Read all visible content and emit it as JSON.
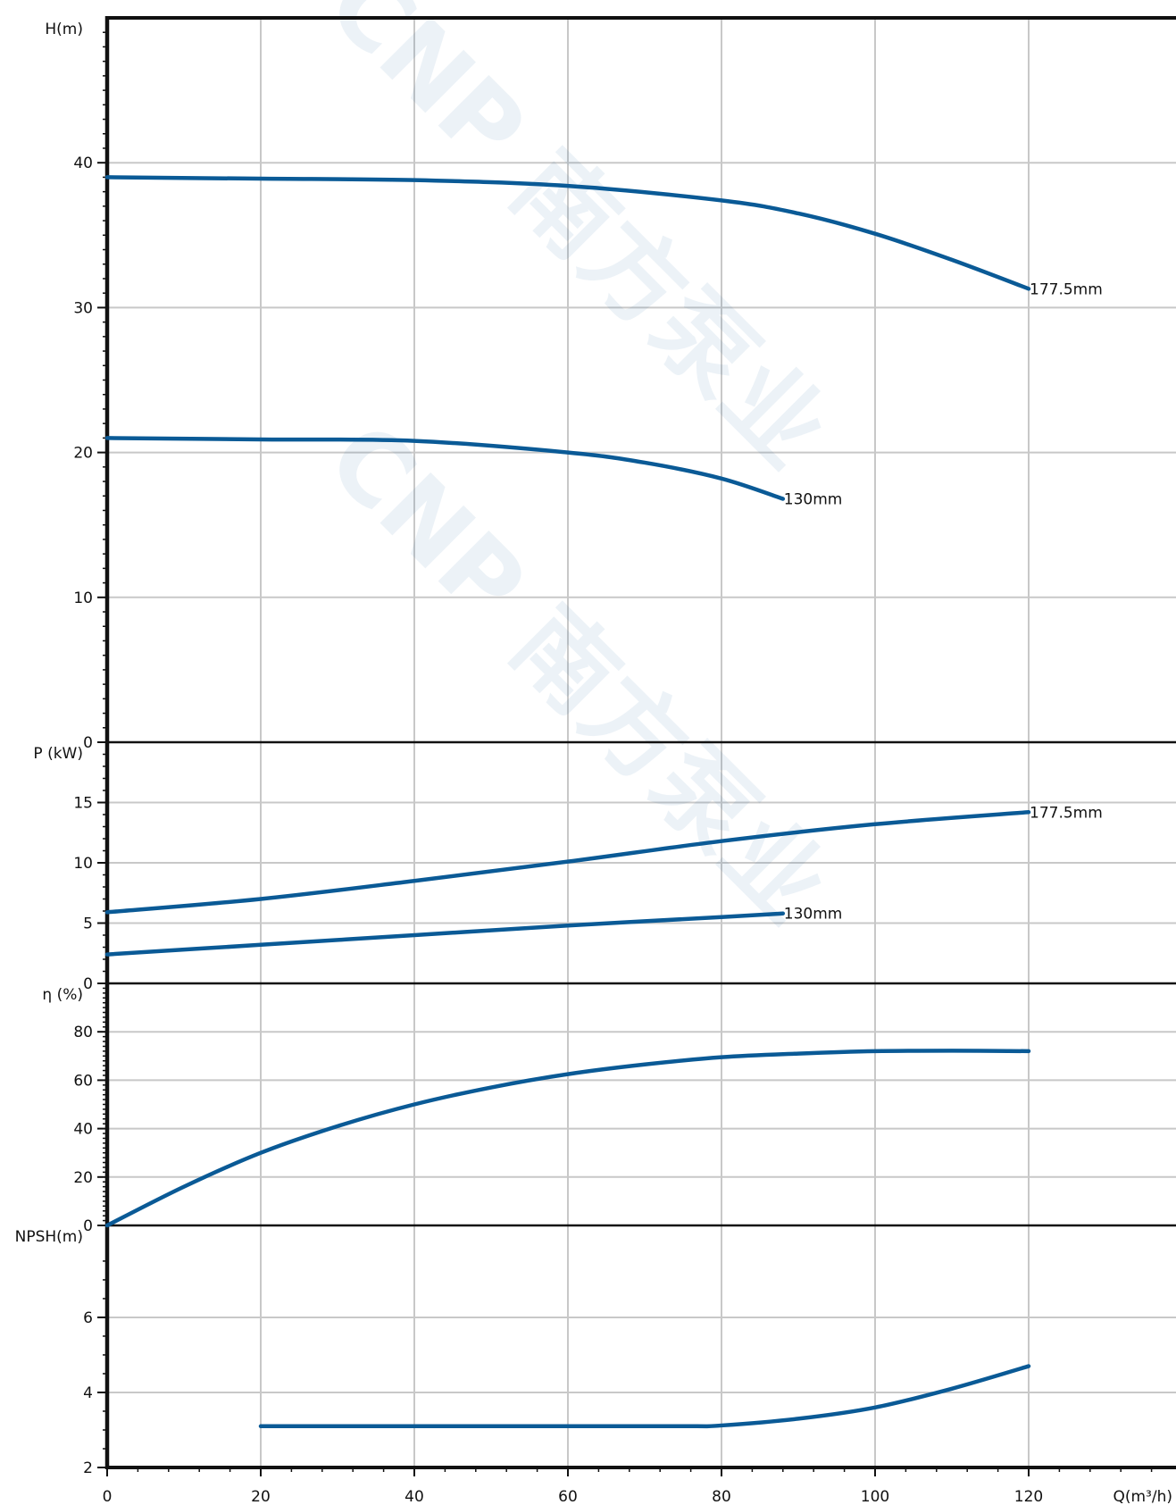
{
  "chart_data": {
    "type": "line",
    "x_axis": {
      "label": "Q(m³/h)",
      "range": [
        0,
        138
      ],
      "ticks": [
        0,
        20,
        40,
        60,
        80,
        100,
        120
      ]
    },
    "grid": true,
    "line_color": "#0a5a96",
    "grid_color": "#c8c8c8",
    "watermark": "CNP 南方泵业",
    "panels": [
      {
        "id": "head",
        "ylabel": "H(m)",
        "ylim": [
          0,
          50
        ],
        "ticks": [
          0,
          10,
          20,
          30,
          40
        ],
        "series": [
          {
            "name": "177.5mm",
            "x": [
              0,
              20,
              40,
              60,
              80,
              90,
              100,
              110,
              120
            ],
            "y": [
              39,
              38.9,
              38.8,
              38.4,
              37.4,
              36.5,
              35.1,
              33.3,
              31.3
            ]
          },
          {
            "name": "130mm",
            "x": [
              0,
              20,
              40,
              60,
              70,
              80,
              88
            ],
            "y": [
              21,
              20.9,
              20.8,
              20.0,
              19.3,
              18.2,
              16.8
            ]
          }
        ]
      },
      {
        "id": "power",
        "ylabel": "P (kW)",
        "ylim": [
          0,
          20
        ],
        "ticks": [
          0,
          5,
          10,
          15
        ],
        "series": [
          {
            "name": "177.5mm",
            "x": [
              0,
              20,
              40,
              60,
              80,
              100,
              120
            ],
            "y": [
              5.9,
              7.0,
              8.5,
              10.1,
              11.8,
              13.2,
              14.2
            ]
          },
          {
            "name": "130mm",
            "x": [
              0,
              20,
              40,
              60,
              80,
              88
            ],
            "y": [
              2.4,
              3.2,
              4.0,
              4.8,
              5.5,
              5.8
            ]
          }
        ]
      },
      {
        "id": "efficiency",
        "ylabel": "η (%)",
        "ylim": [
          0,
          100
        ],
        "ticks": [
          0,
          20,
          40,
          60,
          80
        ],
        "series": [
          {
            "name": "",
            "x": [
              0,
              10,
              20,
              30,
              40,
              50,
              60,
              70,
              80,
              90,
              100,
              110,
              120
            ],
            "y": [
              0,
              16,
              30,
              41,
              50,
              57,
              62.5,
              66.5,
              69.5,
              71,
              72,
              72.2,
              72
            ]
          }
        ]
      },
      {
        "id": "npsh",
        "ylabel": "NPSH(m)",
        "ylim": [
          2,
          8
        ],
        "ticks": [
          2,
          4,
          6
        ],
        "series": [
          {
            "name": "",
            "x": [
              20,
              40,
              60,
              76,
              80,
              90,
              100,
              110,
              120
            ],
            "y": [
              3.1,
              3.1,
              3.1,
              3.1,
              3.12,
              3.3,
              3.6,
              4.1,
              4.7
            ]
          }
        ]
      }
    ],
    "curve_labels": [
      {
        "panel": "head",
        "text": "177.5mm",
        "x": 120,
        "y": 31.3
      },
      {
        "panel": "head",
        "text": "130mm",
        "x": 88,
        "y": 16.8
      },
      {
        "panel": "power",
        "text": "177.5mm",
        "x": 120,
        "y": 14.2
      },
      {
        "panel": "power",
        "text": "130mm",
        "x": 88,
        "y": 5.8
      }
    ]
  }
}
